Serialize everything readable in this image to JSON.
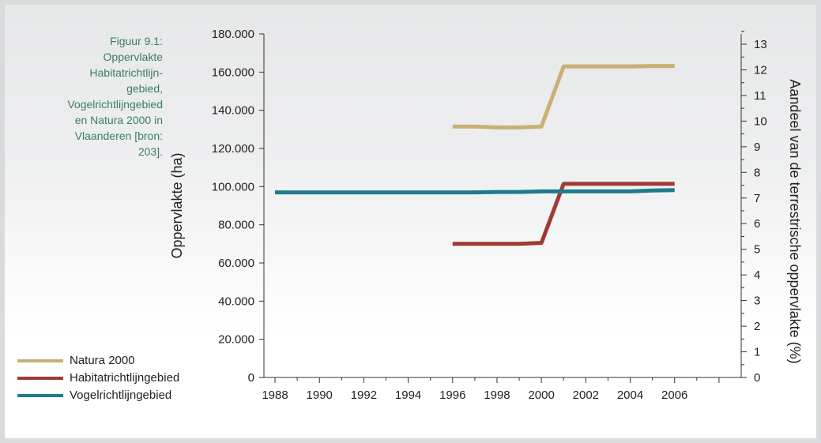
{
  "caption": "Figuur 9.1:\nOppervlakte\nHabitatrichtlijn-\ngebied,\nVogelrichtlijngebied\nen Natura 2000 in\nVlaanderen [bron:\n203].",
  "chart_data": {
    "type": "line",
    "title": "",
    "xlabel": "",
    "ylabel": "Oppervlakte (ha)",
    "y2label": "Aandeel van de terrestrische oppervlakte (%)",
    "xlim": [
      1987.5,
      2009
    ],
    "ylim": [
      0,
      180000
    ],
    "y2lim": [
      0,
      13.4
    ],
    "x_ticks": [
      1988,
      1990,
      1992,
      1994,
      1996,
      1998,
      2000,
      2002,
      2004,
      2006
    ],
    "x_tick_labels": [
      "1988",
      "1990",
      "1992",
      "1994",
      "1996",
      "1998",
      "2000",
      "2002",
      "2004",
      "2006"
    ],
    "y_ticks": [
      0,
      20000,
      40000,
      60000,
      80000,
      100000,
      120000,
      140000,
      160000,
      180000
    ],
    "y_tick_labels": [
      "0",
      "20.000",
      "40.000",
      "60.000",
      "80.000",
      "100.000",
      "120.000",
      "140.000",
      "160.000",
      "180.000"
    ],
    "y2_ticks": [
      0,
      1,
      2,
      3,
      4,
      5,
      6,
      7,
      8,
      9,
      10,
      11,
      12,
      13
    ],
    "y2_tick_labels": [
      "0",
      "1",
      "2",
      "3",
      "4",
      "5",
      "6",
      "7",
      "8",
      "9",
      "10",
      "11",
      "12",
      "13"
    ],
    "grid": false,
    "legend_position": "bottom-left",
    "series": [
      {
        "name": "Natura 2000",
        "color": "#c9b074",
        "x": [
          1996,
          1997,
          1998,
          1999,
          2000,
          2001,
          2002,
          2003,
          2004,
          2005,
          2006
        ],
        "values": [
          131500,
          131500,
          131000,
          131000,
          131500,
          163000,
          163000,
          163000,
          163000,
          163200,
          163200
        ]
      },
      {
        "name": "Habitatrichtlijngebied",
        "color": "#9e3b34",
        "x": [
          1996,
          1997,
          1998,
          1999,
          2000,
          2001,
          2002,
          2003,
          2004,
          2005,
          2006
        ],
        "values": [
          70000,
          70000,
          70000,
          70000,
          70500,
          101500,
          101500,
          101500,
          101500,
          101500,
          101500
        ]
      },
      {
        "name": "Vogelrichtlijngebied",
        "color": "#1f7a8c",
        "x": [
          1988,
          1990,
          1992,
          1994,
          1996,
          1997,
          1998,
          1999,
          2000,
          2001,
          2002,
          2003,
          2004,
          2005,
          2006
        ],
        "values": [
          97000,
          97000,
          97000,
          97000,
          97000,
          97000,
          97200,
          97200,
          97500,
          97500,
          97500,
          97500,
          97500,
          98000,
          98200
        ]
      }
    ]
  }
}
